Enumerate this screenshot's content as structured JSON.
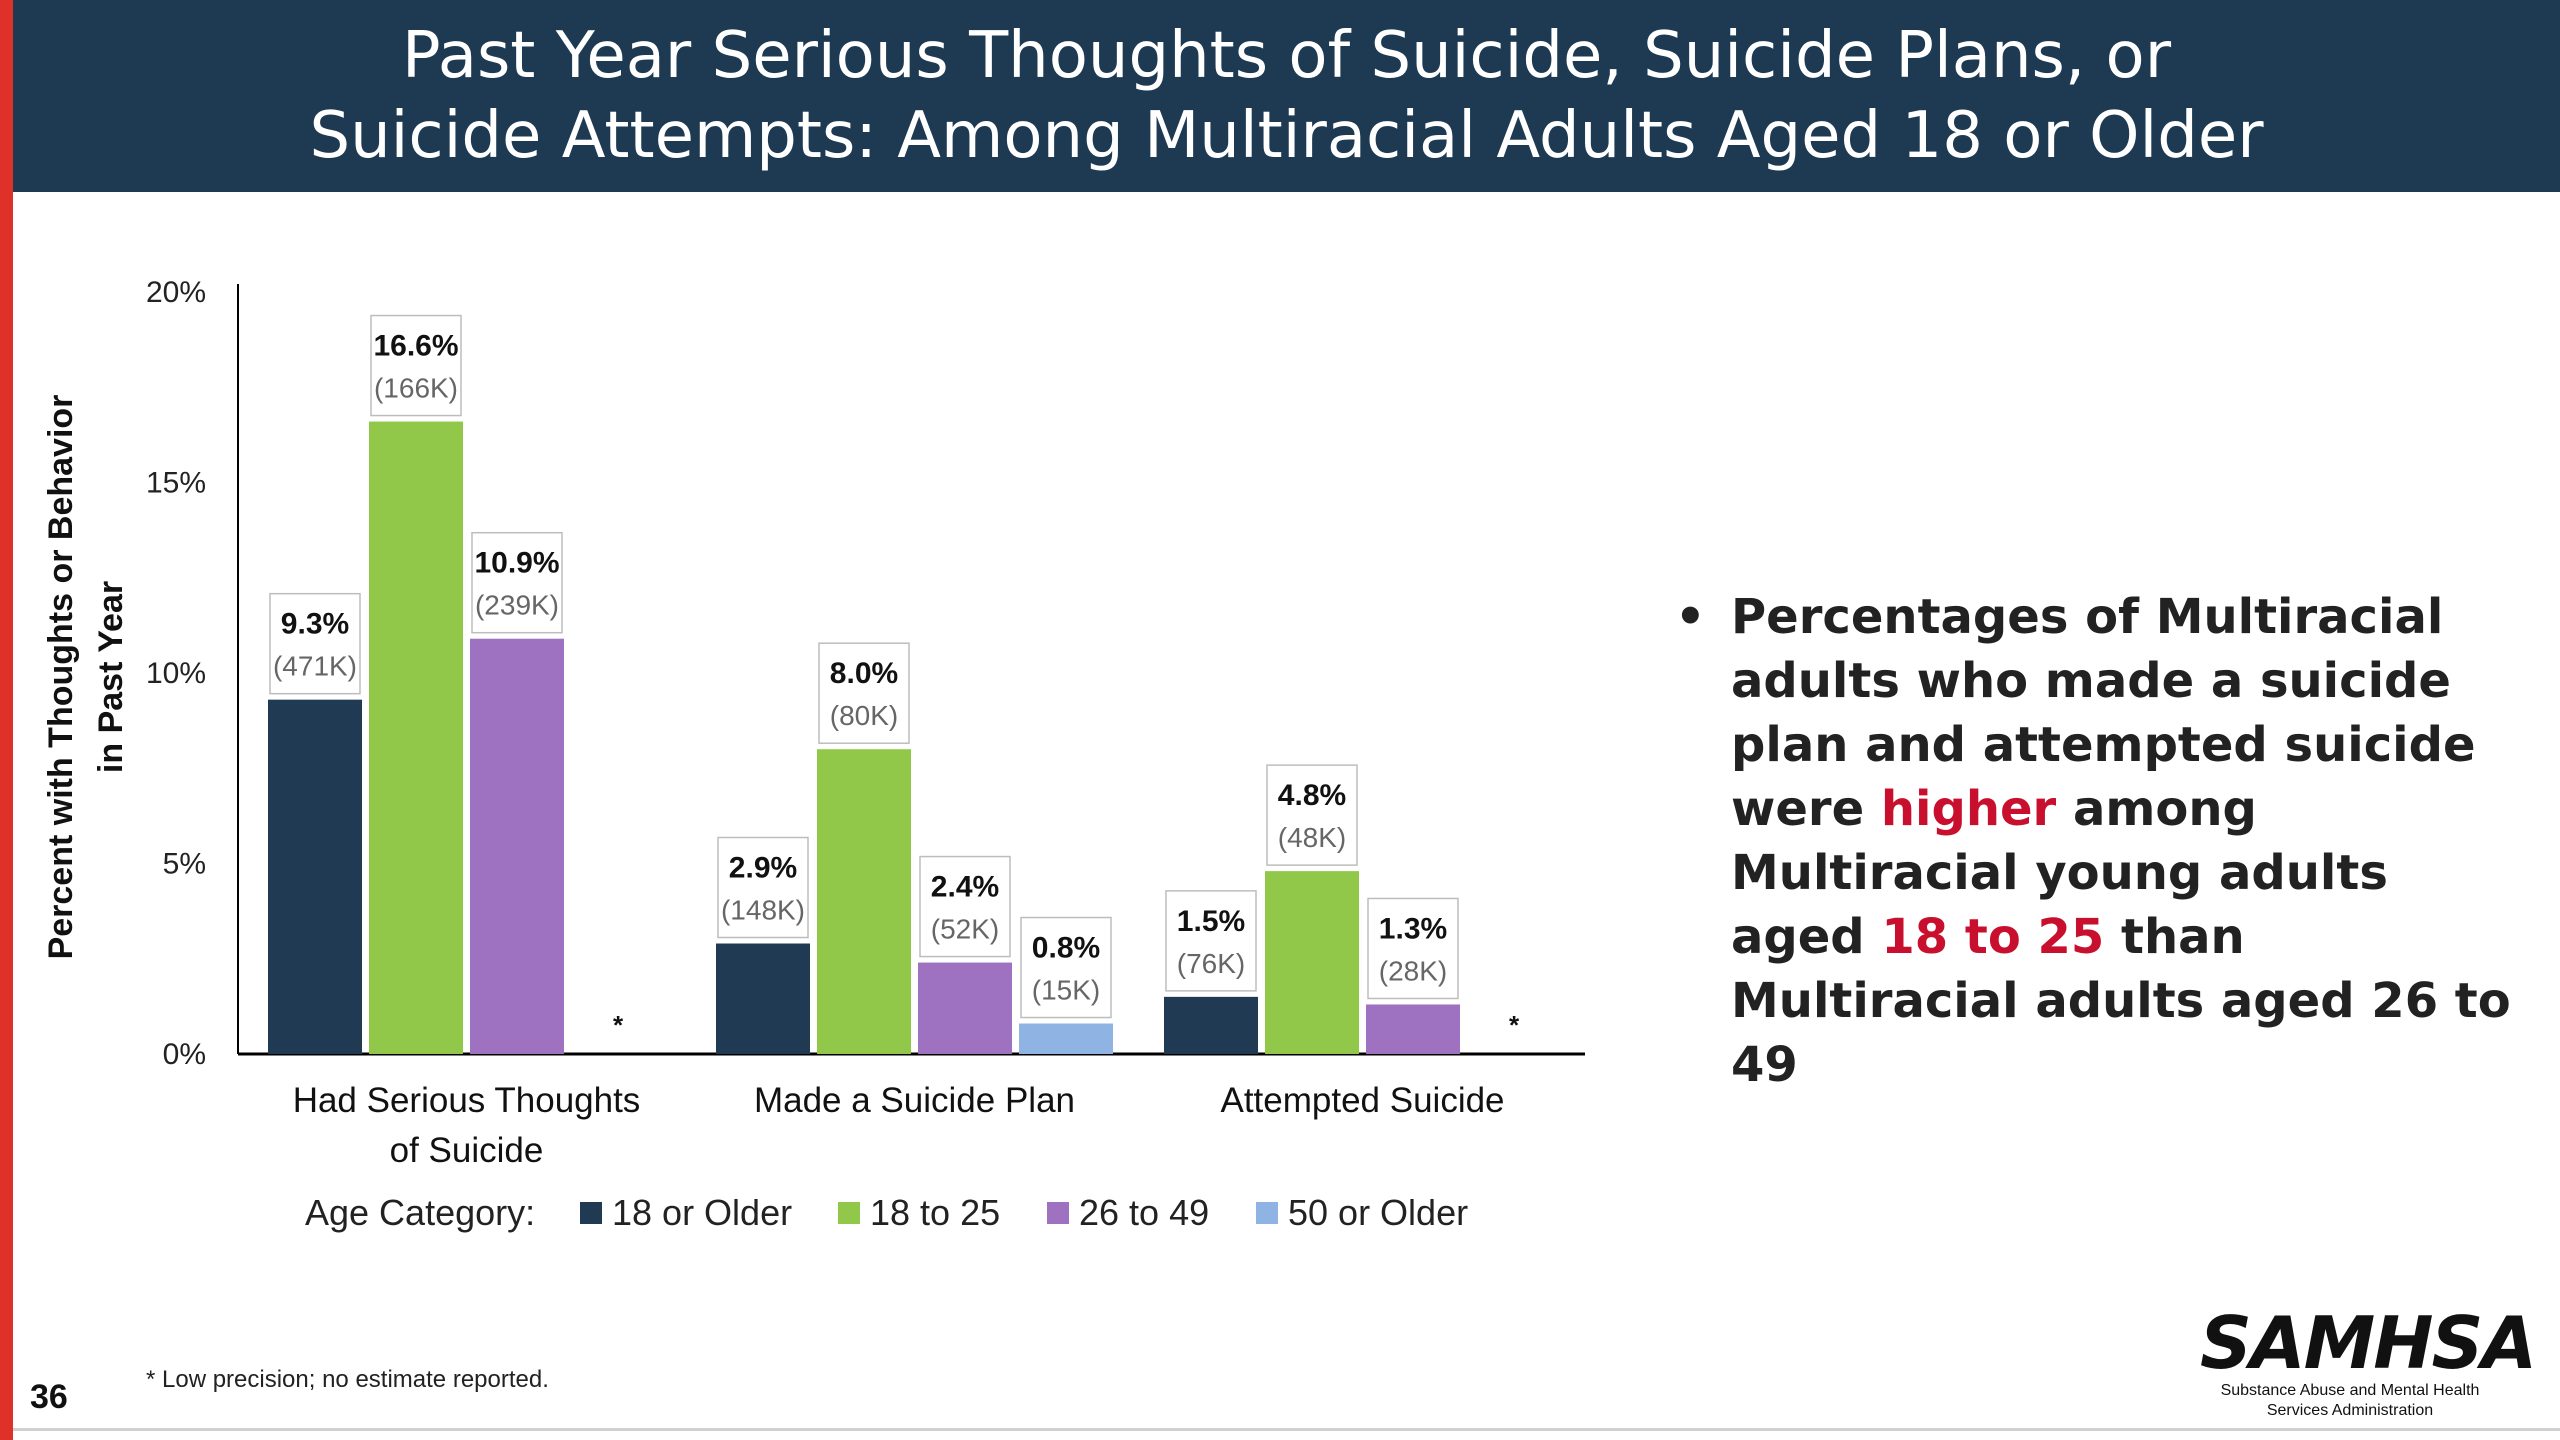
{
  "slide": {
    "title_line1": "Past Year Serious Thoughts of Suicide, Suicide Plans, or",
    "title_line2": "Suicide Attempts: Among Multiracial Adults Aged 18 or Older",
    "page_number": "36",
    "footnote": "* Low precision; no estimate reported.",
    "logo_text": "SAMHSA",
    "logo_sub_line1": "Substance Abuse and Mental Health",
    "logo_sub_line2": "Services Administration",
    "accent_color": "#e0302a",
    "header_color": "#1d3a52",
    "highlight_color": "#c8102e"
  },
  "bullet": {
    "part1": "Percentages of Multiracial adults who made a suicide plan and attempted suicide were ",
    "highlight1": "higher",
    "part2": " among Multiracial young adults aged ",
    "highlight2": "18 to 25",
    "part3": " than Multiracial adults aged 26 to 49"
  },
  "chart_data": {
    "type": "bar",
    "ylabel_line1": "Percent with Thoughts or Behavior",
    "ylabel_line2": "in Past Year",
    "ylim": [
      0,
      20
    ],
    "yticks": [
      "0%",
      "5%",
      "10%",
      "15%",
      "20%"
    ],
    "category_lines": [
      [
        "Had Serious Thoughts",
        "of Suicide"
      ],
      [
        "Made a Suicide Plan"
      ],
      [
        "Attempted Suicide"
      ]
    ],
    "legend_title": "Age Category:",
    "series": [
      {
        "name": "18 or Older",
        "color": "#1f3a52",
        "values": [
          9.3,
          2.9,
          1.5
        ],
        "labels": [
          "9.3%",
          "2.9%",
          "1.5%"
        ],
        "counts": [
          "(471K)",
          "(148K)",
          "(76K)"
        ]
      },
      {
        "name": "18 to 25",
        "color": "#92c84a",
        "values": [
          16.6,
          8.0,
          4.8
        ],
        "labels": [
          "16.6%",
          "8.0%",
          "4.8%"
        ],
        "counts": [
          "(166K)",
          "(80K)",
          "(48K)"
        ]
      },
      {
        "name": "26 to 49",
        "color": "#9e71c1",
        "values": [
          10.9,
          2.4,
          1.3
        ],
        "labels": [
          "10.9%",
          "2.4%",
          "1.3%"
        ],
        "counts": [
          "(239K)",
          "(52K)",
          "(28K)"
        ]
      },
      {
        "name": "50 or Older",
        "color": "#8fb4e3",
        "values": [
          null,
          0.8,
          null
        ],
        "labels": [
          "*",
          "0.8%",
          "*"
        ],
        "counts": [
          "",
          "(15K)",
          ""
        ]
      }
    ]
  }
}
